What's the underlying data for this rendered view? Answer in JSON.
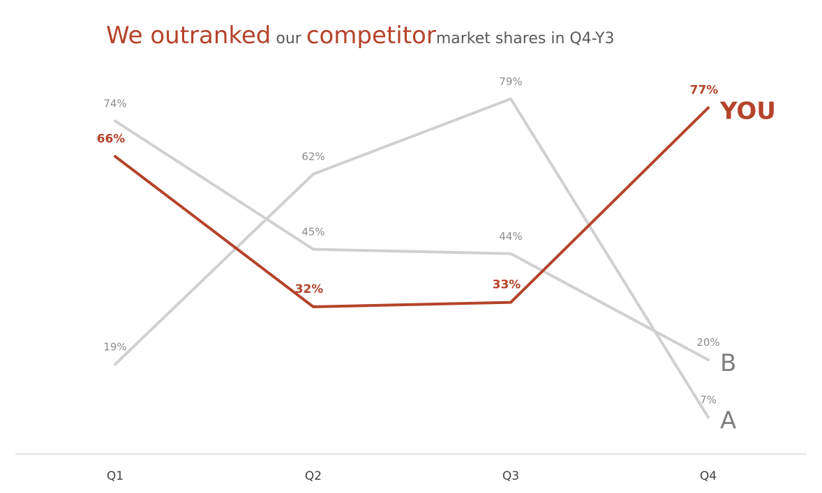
{
  "chart_data": {
    "type": "line",
    "title_parts": [
      {
        "text": "We outranked",
        "style": "big"
      },
      {
        "text": " our ",
        "style": "small"
      },
      {
        "text": "competitor",
        "style": "big"
      },
      {
        "text": "market shares in Q4-Y3",
        "style": "small"
      }
    ],
    "categories": [
      "Q1",
      "Q2",
      "Q3",
      "Q4"
    ],
    "series": [
      {
        "name": "A",
        "values": [
          19,
          62,
          79,
          7
        ],
        "labels": [
          "19%",
          "62%",
          "79%",
          "7%"
        ],
        "highlight": false
      },
      {
        "name": "B",
        "values": [
          74,
          45,
          44,
          20
        ],
        "labels": [
          "74%",
          "45%",
          "44%",
          "20%"
        ],
        "highlight": false
      },
      {
        "name": "YOU",
        "values": [
          66,
          32,
          33,
          77
        ],
        "labels": [
          "66%",
          "32%",
          "33%",
          "77%"
        ],
        "highlight": true
      }
    ],
    "ylim": [
      0,
      90
    ],
    "grid": false,
    "legend": "end-of-line labels",
    "colors": {
      "accent": "#b5432a",
      "muted": "#d0d0d0",
      "muted_text": "#8c8c8c",
      "axis": "#d9d9d9"
    }
  }
}
